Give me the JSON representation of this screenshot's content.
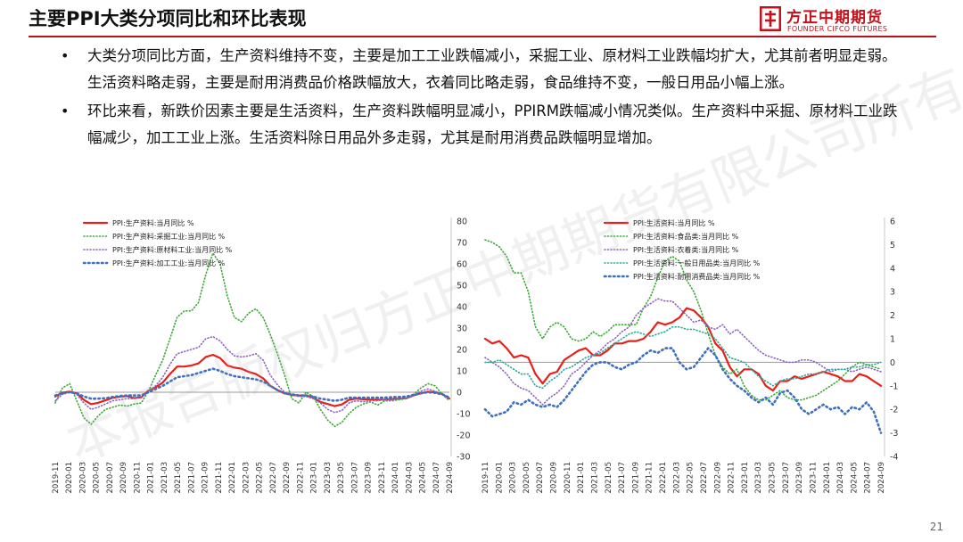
{
  "slide": {
    "title": "主要PPI大类分项同比和环比表现",
    "page_number": "21",
    "watermark": "本报告版权归方正中期期货有限公司所有"
  },
  "logo": {
    "name_cn": "方正中期期货",
    "name_en": "FOUNDER CIFCO FUTURES",
    "brand_color": "#c8101a"
  },
  "bullets": [
    "大类分项同比方面，生产资料维持不变，主要是加工工业跌幅减小，采掘工业、原材料工业跌幅均扩大，尤其前者明显走弱。生活资料略走弱，主要是耐用消费品价格跌幅放大，衣着同比略走弱，食品维持不变，一般日用品小幅上涨。",
    "环比来看，新跌价因素主要是生活资料，生产资料跌幅明显减小，PPIRM跌幅减小情况类似。生产资料中采掘、原材料工业跌幅减少，加工工业上涨。生活资料除日用品外多走弱，尤其是耐用消费品跌幅明显增加。"
  ],
  "chart_data": [
    {
      "type": "line",
      "x_tick_labels": [
        "2019-11",
        "2020-01",
        "2020-03",
        "2020-05",
        "2020-07",
        "2020-09",
        "2020-11",
        "2021-01",
        "2021-03",
        "2021-05",
        "2021-07",
        "2021-09",
        "2021-11",
        "2022-01",
        "2022-03",
        "2022-05",
        "2022-07",
        "2022-09",
        "2022-11",
        "2023-01",
        "2023-03",
        "2023-05",
        "2023-07",
        "2023-09",
        "2023-11",
        "2024-01",
        "2024-03",
        "2024-05",
        "2024-07",
        "2024-09"
      ],
      "ylim": [
        -30,
        80
      ],
      "y_ticks": [
        -30,
        -20,
        -10,
        0,
        10,
        20,
        30,
        40,
        50,
        60,
        70,
        80
      ],
      "y_tick_labels": [
        "-30",
        "-20",
        "-10",
        "0",
        "10",
        "20",
        "30",
        "40",
        "50",
        "60",
        "70",
        "80"
      ],
      "y_axis_side": "right",
      "legend_position": "top-left",
      "series": [
        {
          "name": "PPI:生产资料:当月同比 %",
          "color": "#e8201a",
          "style": "solid",
          "width": 2.2,
          "values": [
            -2.0,
            -0.2,
            0.3,
            -0.5,
            -3.6,
            -5.6,
            -4.9,
            -3.8,
            -2.6,
            -2.1,
            -1.8,
            -2.7,
            -2.4,
            0.8,
            2.3,
            4.5,
            8.5,
            12.0,
            12.0,
            12.5,
            13.5,
            16.5,
            17.5,
            16.0,
            12.5,
            11.5,
            11.0,
            9.5,
            8.5,
            6.5,
            3.0,
            1.0,
            -0.5,
            -1.3,
            -1.5,
            -1.5,
            -2.5,
            -4.5,
            -5.5,
            -6.5,
            -5.7,
            -3.5,
            -3.0,
            -3.3,
            -3.4,
            -3.5,
            -3.4,
            -3.2,
            -3.0,
            -2.8,
            -1.5,
            -0.5,
            0.2,
            0.0,
            -0.8,
            -3.0
          ]
        },
        {
          "name": "PPI:生产资料:采掘工业:当月同比 %",
          "color": "#3aaa35",
          "style": "dot",
          "width": 1.6,
          "values": [
            -5.0,
            2.0,
            4.0,
            -4.0,
            -12.0,
            -15.0,
            -11.0,
            -8.0,
            -7.0,
            -6.0,
            -6.5,
            -5.5,
            -5.0,
            0.5,
            8.0,
            15.0,
            25.0,
            35.0,
            38.0,
            38.0,
            42.0,
            55.0,
            65.0,
            60.0,
            45.0,
            35.0,
            33.0,
            37.0,
            39.0,
            35.0,
            27.0,
            18.0,
            8.0,
            -3.0,
            -5.0,
            0.0,
            -2.0,
            -8.0,
            -13.0,
            -16.0,
            -14.0,
            -10.0,
            -7.0,
            -5.5,
            -4.5,
            -6.0,
            -4.0,
            -4.0,
            -3.5,
            -3.0,
            -1.0,
            2.0,
            4.0,
            3.0,
            -1.0,
            -4.0
          ]
        },
        {
          "name": "PPI:生产资料:原材料工业:当月同比 %",
          "color": "#8e63c2",
          "style": "dot",
          "width": 1.6,
          "values": [
            -4.0,
            -1.0,
            0.0,
            -1.0,
            -5.0,
            -8.0,
            -7.0,
            -5.5,
            -4.0,
            -3.5,
            -3.0,
            -3.0,
            -2.5,
            0.5,
            3.0,
            7.0,
            13.0,
            18.0,
            19.0,
            20.0,
            21.0,
            25.0,
            26.0,
            24.0,
            20.0,
            17.0,
            16.5,
            17.0,
            18.0,
            15.0,
            8.0,
            3.5,
            0.0,
            -1.0,
            -2.0,
            -2.0,
            -3.0,
            -5.0,
            -8.0,
            -9.5,
            -8.5,
            -5.0,
            -4.0,
            -4.5,
            -4.0,
            -4.0,
            -3.5,
            -3.5,
            -3.0,
            -2.5,
            -1.5,
            0.5,
            1.5,
            0.5,
            -1.0,
            -3.0
          ]
        },
        {
          "name": "PPI:生产资料:加工工业:当月同比 %",
          "color": "#3e6fc0",
          "style": "dot",
          "width": 2.6,
          "values": [
            -1.5,
            -0.5,
            0.0,
            -0.5,
            -2.0,
            -3.0,
            -3.0,
            -2.8,
            -2.2,
            -1.8,
            -1.5,
            -1.5,
            -1.5,
            0.0,
            1.5,
            3.0,
            5.0,
            7.0,
            7.5,
            8.0,
            9.0,
            10.0,
            11.0,
            10.0,
            8.5,
            7.5,
            7.0,
            6.5,
            6.0,
            5.0,
            3.0,
            1.0,
            -0.5,
            -1.0,
            -1.5,
            -1.5,
            -2.0,
            -3.0,
            -3.5,
            -4.0,
            -3.5,
            -2.5,
            -2.5,
            -2.5,
            -2.5,
            -2.5,
            -2.5,
            -2.3,
            -2.2,
            -2.0,
            -1.2,
            -0.5,
            0.0,
            -0.3,
            -1.0,
            -2.5
          ]
        }
      ]
    },
    {
      "type": "line",
      "x_tick_labels": [
        "2019-11",
        "2020-01",
        "2020-03",
        "2020-05",
        "2020-07",
        "2020-09",
        "2020-11",
        "2021-01",
        "2021-03",
        "2021-05",
        "2021-07",
        "2021-09",
        "2021-11",
        "2022-01",
        "2022-03",
        "2022-05",
        "2022-07",
        "2022-09",
        "2022-11",
        "2023-01",
        "2023-03",
        "2023-05",
        "2023-07",
        "2023-09",
        "2023-11",
        "2024-01",
        "2024-03",
        "2024-05",
        "2024-07",
        "2024-09"
      ],
      "ylim": [
        -4,
        6
      ],
      "y_ticks": [
        -4,
        -3,
        -2,
        -1,
        0,
        1,
        2,
        3,
        4,
        5,
        6
      ],
      "y_tick_labels": [
        "-4",
        "-3",
        "-2",
        "-1",
        "0",
        "1",
        "2",
        "3",
        "4",
        "5",
        "6"
      ],
      "y_axis_side": "right",
      "legend_position": "top",
      "series": [
        {
          "name": "PPI:生活资料:当月同比 %",
          "color": "#e8201a",
          "style": "solid",
          "width": 2.2,
          "values": [
            1.0,
            0.8,
            0.9,
            0.6,
            0.2,
            0.3,
            0.2,
            -0.5,
            -0.9,
            -0.5,
            -0.4,
            0.1,
            0.3,
            0.5,
            0.6,
            0.3,
            0.3,
            0.5,
            0.8,
            0.8,
            0.9,
            0.9,
            1.0,
            1.3,
            1.7,
            1.6,
            1.7,
            1.9,
            2.3,
            2.2,
            1.9,
            1.5,
            0.8,
            0.5,
            -0.2,
            -0.6,
            -0.3,
            -0.3,
            -0.5,
            -1.0,
            -1.2,
            -0.8,
            -0.8,
            -0.6,
            -0.7,
            -0.6,
            -0.5,
            -0.4,
            -0.5,
            -0.6,
            -0.8,
            -0.8,
            -0.5,
            -0.6,
            -0.8,
            -1.0
          ]
        },
        {
          "name": "PPI:生活资料:食品类:当月同比 %",
          "color": "#3aaa35",
          "style": "dot",
          "width": 1.6,
          "values": [
            5.2,
            5.1,
            4.9,
            4.5,
            3.8,
            3.8,
            3.0,
            1.5,
            1.0,
            1.5,
            1.7,
            1.5,
            1.0,
            0.9,
            1.0,
            1.3,
            1.1,
            1.3,
            1.6,
            1.6,
            1.6,
            1.6,
            2.3,
            2.8,
            3.6,
            4.3,
            4.5,
            4.3,
            3.5,
            3.0,
            2.2,
            1.2,
            0.3,
            -0.2,
            -0.5,
            -0.3,
            -1.0,
            -1.4,
            -1.6,
            -1.6,
            -1.4,
            -1.2,
            -1.5,
            -1.6,
            -1.6,
            -1.5,
            -1.4,
            -1.2,
            -1.0,
            -0.8,
            -0.5,
            -0.2,
            0.0,
            -0.1,
            -0.2,
            -0.3
          ]
        },
        {
          "name": "PPI:生活资料:衣着类:当月同比 %",
          "color": "#8e63c2",
          "style": "dot",
          "width": 1.6,
          "values": [
            0.2,
            0.0,
            -0.2,
            -0.5,
            -0.9,
            -1.1,
            -1.2,
            -1.5,
            -1.8,
            -1.5,
            -1.3,
            -1.0,
            -0.5,
            -0.3,
            0.0,
            0.3,
            0.5,
            0.8,
            1.0,
            1.3,
            1.5,
            2.0,
            2.3,
            2.5,
            2.7,
            2.6,
            2.6,
            2.3,
            2.0,
            1.7,
            1.8,
            1.5,
            1.4,
            1.6,
            1.2,
            1.4,
            1.1,
            0.8,
            0.5,
            0.3,
            0.2,
            0.1,
            0.0,
            0.0,
            0.1,
            0.1,
            0.0,
            -0.2,
            -0.4,
            -0.3,
            -0.3,
            -0.4,
            -0.3,
            -0.2,
            -0.3,
            -0.4
          ]
        },
        {
          "name": "PPI:生活资料:一般日用品类:当月同比 %",
          "color": "#2aaa9a",
          "style": "dot",
          "width": 1.6,
          "values": [
            0.0,
            0.0,
            0.1,
            -0.1,
            -0.3,
            -0.5,
            -0.5,
            -1.0,
            -1.1,
            -0.8,
            -0.6,
            -0.3,
            -0.2,
            0.0,
            0.2,
            0.3,
            0.4,
            0.6,
            0.8,
            1.0,
            1.2,
            1.3,
            1.2,
            1.1,
            1.2,
            1.3,
            1.5,
            1.5,
            1.4,
            1.4,
            1.3,
            1.2,
            1.0,
            0.6,
            0.2,
            0.1,
            0.0,
            -0.3,
            -0.6,
            -0.8,
            -1.0,
            -0.8,
            -0.7,
            -0.7,
            -0.6,
            -0.5,
            -0.5,
            -0.4,
            -0.3,
            -0.3,
            -0.3,
            -0.2,
            -0.2,
            -0.1,
            -0.1,
            0.0
          ]
        },
        {
          "name": "PPI:生活资料:耐用消费品类:当月同比 %",
          "color": "#3e6fc0",
          "style": "dot",
          "width": 2.6,
          "values": [
            -2.0,
            -2.3,
            -2.2,
            -2.1,
            -1.7,
            -1.8,
            -1.6,
            -1.8,
            -1.9,
            -1.8,
            -1.9,
            -1.6,
            -1.2,
            -0.8,
            -0.4,
            -0.1,
            0.0,
            0.0,
            -0.2,
            -0.3,
            -0.1,
            0.0,
            0.3,
            0.5,
            0.4,
            0.6,
            0.6,
            0.0,
            -0.3,
            -0.2,
            0.2,
            0.6,
            0.3,
            -0.3,
            -0.7,
            -1.0,
            -1.2,
            -1.5,
            -1.7,
            -1.5,
            -1.8,
            -1.3,
            -1.2,
            -1.5,
            -2.0,
            -2.2,
            -2.0,
            -1.8,
            -2.0,
            -1.9,
            -2.2,
            -1.9,
            -2.0,
            -1.7,
            -2.1,
            -3.0
          ]
        }
      ]
    }
  ]
}
